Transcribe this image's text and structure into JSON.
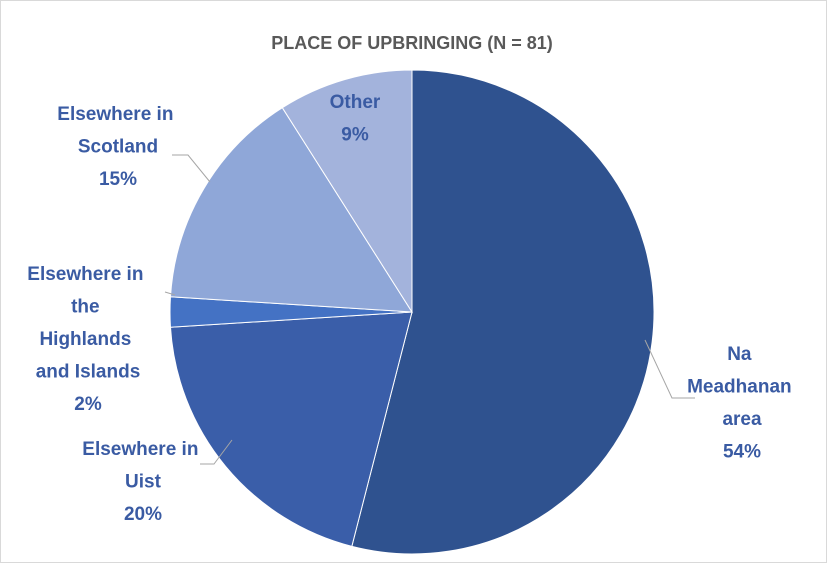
{
  "chart_data": {
    "type": "pie",
    "title": "PLACE OF UPBRINGING (N = 81)",
    "categories": [
      "Na Meadhanan area",
      "Elsewhere in Uist",
      "Elsewhere in the Highlands and Islands",
      "Elsewhere in Scotland",
      "Other"
    ],
    "values": [
      54,
      20,
      2,
      15,
      9
    ],
    "value_labels": [
      "54%",
      "20%",
      "2%",
      "15%",
      "9%"
    ],
    "colors": [
      "#2f528f",
      "#3a5ea9",
      "#4472c4",
      "#8fa7d8",
      "#a3b3dc"
    ]
  }
}
